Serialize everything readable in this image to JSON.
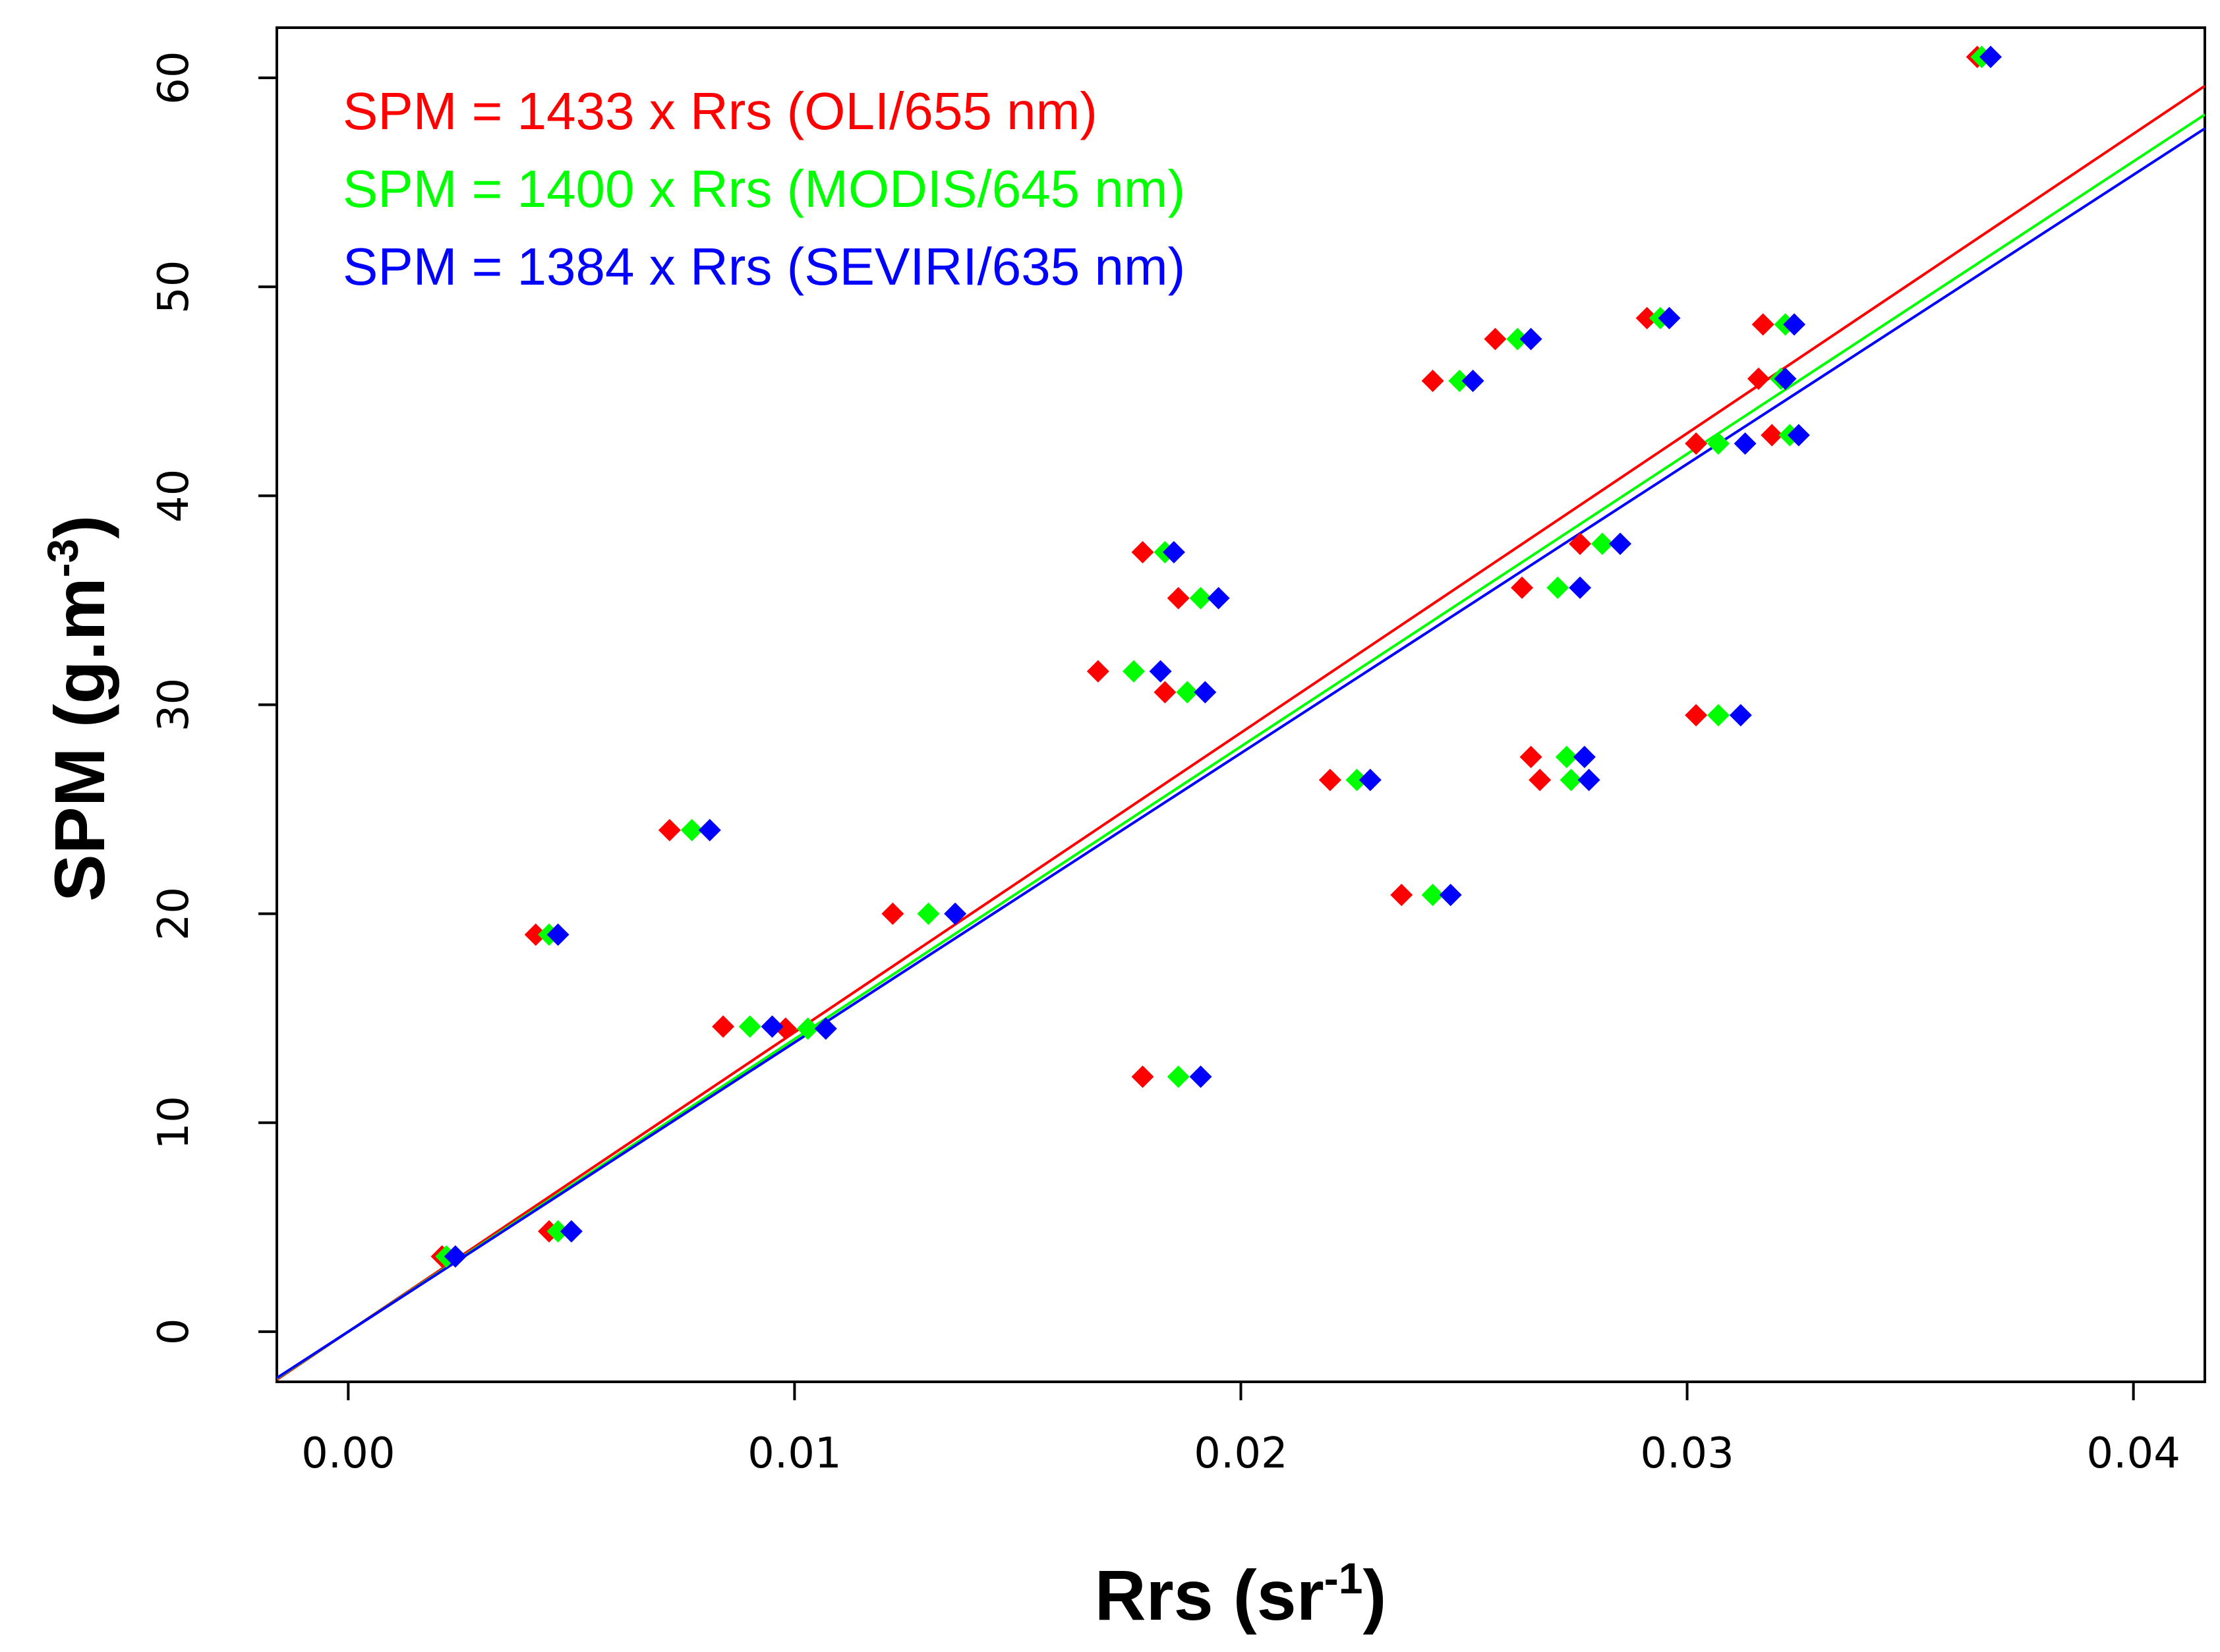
{
  "chart_data": {
    "type": "scatter",
    "xlabel": "Rrs (sr",
    "xlabel_sup": "-1",
    "xlabel_end": ")",
    "ylabel": "SPM (g.m",
    "ylabel_sup": "-3",
    "ylabel_end": ")",
    "xlim": [
      -0.0016,
      0.0416
    ],
    "ylim": [
      -2.4,
      62.4
    ],
    "x_ticks": [
      0.0,
      0.01,
      0.02,
      0.03,
      0.04
    ],
    "x_tick_labels": [
      "0.00",
      "0.01",
      "0.02",
      "0.03",
      "0.04"
    ],
    "y_ticks": [
      0,
      10,
      20,
      30,
      40,
      50,
      60
    ],
    "y_tick_labels": [
      "0",
      "10",
      "20",
      "30",
      "40",
      "50",
      "60"
    ],
    "grid": false,
    "legend_position": "top-left",
    "marker": "diamond",
    "series": [
      {
        "name": "OLI/655 nm",
        "color": "#ff0000",
        "slope": 1433,
        "equation": "SPM = 1433 x Rrs (OLI/655 nm)",
        "x": [
          0.0365,
          0.0291,
          0.0257,
          0.0317,
          0.0243,
          0.0316,
          0.0302,
          0.0319,
          0.0178,
          0.0276,
          0.0263,
          0.0186,
          0.0168,
          0.0183,
          0.0302,
          0.0265,
          0.0267,
          0.022,
          0.0072,
          0.0236,
          0.0122,
          0.0042,
          0.0084,
          0.0098,
          0.0178,
          0.0045,
          0.0021
        ],
        "y": [
          61.0,
          48.5,
          47.5,
          48.2,
          45.5,
          45.6,
          42.5,
          42.9,
          37.3,
          37.7,
          35.6,
          35.1,
          31.6,
          30.6,
          29.5,
          27.5,
          26.4,
          26.4,
          24.0,
          20.9,
          20.0,
          19.0,
          14.6,
          14.5,
          12.2,
          4.8,
          3.6
        ]
      },
      {
        "name": "MODIS/645 nm",
        "color": "#00ff00",
        "slope": 1400,
        "equation": "SPM = 1400 x Rrs (MODIS/645 nm)",
        "x": [
          0.0366,
          0.0294,
          0.0262,
          0.0322,
          0.0249,
          0.0321,
          0.0307,
          0.0323,
          0.0183,
          0.0281,
          0.0271,
          0.0191,
          0.0176,
          0.0188,
          0.0307,
          0.0273,
          0.0274,
          0.0226,
          0.0077,
          0.0243,
          0.013,
          0.0045,
          0.009,
          0.0103,
          0.0186,
          0.0047,
          0.0022
        ],
        "y": [
          61.0,
          48.5,
          47.5,
          48.2,
          45.5,
          45.6,
          42.5,
          42.9,
          37.3,
          37.7,
          35.6,
          35.1,
          31.6,
          30.6,
          29.5,
          27.5,
          26.4,
          26.4,
          24.0,
          20.9,
          20.0,
          19.0,
          14.6,
          14.5,
          12.2,
          4.8,
          3.6
        ]
      },
      {
        "name": "SEVIRI/635 nm",
        "color": "#0000ff",
        "slope": 1384,
        "equation": "SPM = 1384 x Rrs (SEVIRI/635 nm)",
        "x": [
          0.0368,
          0.0296,
          0.0265,
          0.0324,
          0.0252,
          0.0322,
          0.0313,
          0.0325,
          0.0185,
          0.0285,
          0.0276,
          0.0195,
          0.0182,
          0.0192,
          0.0312,
          0.0277,
          0.0278,
          0.0229,
          0.0081,
          0.0247,
          0.0136,
          0.0047,
          0.0095,
          0.0107,
          0.0191,
          0.005,
          0.0024
        ],
        "y": [
          61.0,
          48.5,
          47.5,
          48.2,
          45.5,
          45.6,
          42.5,
          42.9,
          37.3,
          37.7,
          35.6,
          35.1,
          31.6,
          30.6,
          29.5,
          27.5,
          26.4,
          26.4,
          24.0,
          20.9,
          20.0,
          19.0,
          14.6,
          14.5,
          12.2,
          4.8,
          3.6
        ]
      }
    ]
  }
}
